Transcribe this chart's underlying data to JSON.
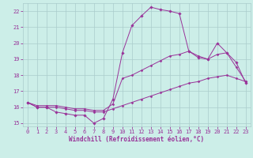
{
  "xlabel": "Windchill (Refroidissement éolien,°C)",
  "bg_color": "#cceee8",
  "grid_color": "#aacccc",
  "line_color": "#993399",
  "hours": [
    0,
    1,
    2,
    3,
    4,
    5,
    6,
    7,
    8,
    9,
    10,
    11,
    12,
    13,
    14,
    15,
    16,
    17,
    18,
    19,
    20,
    21,
    22,
    23
  ],
  "line1": [
    16.3,
    16.0,
    16.0,
    15.7,
    15.6,
    15.5,
    15.5,
    15.0,
    15.3,
    16.5,
    19.4,
    21.1,
    21.7,
    22.25,
    22.1,
    22.0,
    21.85,
    19.5,
    19.1,
    19.0,
    20.0,
    19.4,
    18.8,
    17.5
  ],
  "line2": [
    16.3,
    16.1,
    16.1,
    16.1,
    16.0,
    15.9,
    15.9,
    15.8,
    15.8,
    16.2,
    17.8,
    18.0,
    18.3,
    18.6,
    18.9,
    19.2,
    19.3,
    19.5,
    19.2,
    19.0,
    19.3,
    19.4,
    18.5,
    17.6
  ],
  "line3": [
    16.3,
    16.0,
    16.0,
    16.0,
    15.9,
    15.8,
    15.8,
    15.7,
    15.7,
    15.9,
    16.1,
    16.3,
    16.5,
    16.7,
    16.9,
    17.1,
    17.3,
    17.5,
    17.6,
    17.8,
    17.9,
    18.0,
    17.8,
    17.6
  ],
  "ylim": [
    14.8,
    22.5
  ],
  "xlim": [
    -0.5,
    23.5
  ],
  "yticks": [
    15,
    16,
    17,
    18,
    19,
    20,
    21,
    22
  ],
  "xticks": [
    0,
    1,
    2,
    3,
    4,
    5,
    6,
    7,
    8,
    9,
    10,
    11,
    12,
    13,
    14,
    15,
    16,
    17,
    18,
    19,
    20,
    21,
    22,
    23
  ],
  "tick_color": "#993399",
  "label_fontsize": 5.5,
  "tick_fontsize": 5.0
}
